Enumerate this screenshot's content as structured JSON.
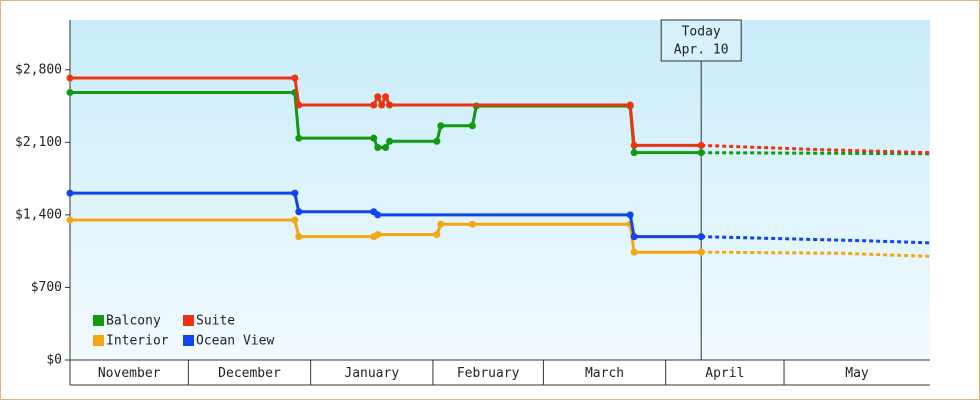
{
  "chart_data": {
    "type": "line",
    "ylim": [
      0,
      3280
    ],
    "yticks": [
      {
        "value": 0,
        "label": "$0"
      },
      {
        "value": 700,
        "label": "$700"
      },
      {
        "value": 1400,
        "label": "$1,400"
      },
      {
        "value": 2100,
        "label": "$2,100"
      },
      {
        "value": 2800,
        "label": "$2,800"
      }
    ],
    "xlim": [
      0,
      218
    ],
    "xticks": [
      {
        "value": 0,
        "label": "November"
      },
      {
        "value": 30,
        "label": "December"
      },
      {
        "value": 61,
        "label": "January"
      },
      {
        "value": 92,
        "label": "February"
      },
      {
        "value": 120,
        "label": "March"
      },
      {
        "value": 151,
        "label": "April"
      },
      {
        "value": 181,
        "label": "May"
      }
    ],
    "annotation": {
      "x": 160,
      "label": "Today",
      "date_label": "Apr. 10"
    },
    "legend": "lower left",
    "series": [
      {
        "name": "Balcony",
        "color": "#119911",
        "x": [
          0,
          57,
          58,
          77,
          78,
          80,
          81,
          93,
          94,
          102,
          103,
          142,
          143,
          160,
          218
        ],
        "values": [
          2580,
          2580,
          2140,
          2140,
          2050,
          2050,
          2110,
          2110,
          2260,
          2260,
          2450,
          2450,
          2000,
          2000,
          1990
        ]
      },
      {
        "name": "Suite",
        "color": "#ee3311",
        "x": [
          0,
          57,
          58,
          77,
          78,
          79,
          80,
          81,
          142,
          143,
          160,
          190,
          218
        ],
        "values": [
          2720,
          2720,
          2460,
          2460,
          2540,
          2460,
          2540,
          2460,
          2460,
          2070,
          2070,
          2030,
          2000
        ]
      },
      {
        "name": "Interior",
        "color": "#f5a511",
        "x": [
          0,
          57,
          58,
          77,
          78,
          93,
          94,
          102,
          142,
          143,
          160,
          195,
          218
        ],
        "values": [
          1350,
          1350,
          1190,
          1190,
          1210,
          1210,
          1310,
          1310,
          1310,
          1040,
          1040,
          1030,
          1000
        ]
      },
      {
        "name": "Ocean View",
        "color": "#1144ee",
        "x": [
          0,
          57,
          58,
          77,
          78,
          142,
          143,
          160,
          202,
          218
        ],
        "values": [
          1610,
          1610,
          1430,
          1430,
          1400,
          1400,
          1190,
          1190,
          1150,
          1130
        ]
      }
    ]
  }
}
